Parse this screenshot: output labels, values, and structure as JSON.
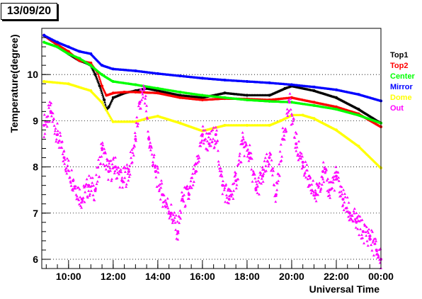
{
  "date_label": "13/09/20",
  "chart_data": {
    "type": "scatter",
    "title": "",
    "xlabel": "Universal Time",
    "ylabel": "Temperature(degree)",
    "xlim": [
      8.8,
      24.0
    ],
    "ylim": [
      5.8,
      11.0
    ],
    "grid": true,
    "legend_position": "right",
    "x_ticks": [
      {
        "value": 10,
        "label": "10:00"
      },
      {
        "value": 12,
        "label": "12:00"
      },
      {
        "value": 14,
        "label": "14:00"
      },
      {
        "value": 16,
        "label": "16:00"
      },
      {
        "value": 18,
        "label": "18:00"
      },
      {
        "value": 20,
        "label": "20:00"
      },
      {
        "value": 22,
        "label": "22:00"
      },
      {
        "value": 24,
        "label": "00:00"
      }
    ],
    "y_ticks": [
      6,
      7,
      8,
      9,
      10
    ],
    "series": [
      {
        "name": "Top1",
        "color": "#000000",
        "x": [
          8.9,
          9.5,
          10.0,
          10.5,
          10.8,
          11.0,
          11.2,
          11.4,
          11.6,
          11.7,
          11.8,
          12.0,
          12.5,
          13.0,
          13.5,
          14.0,
          15.0,
          16.0,
          17.0,
          18.0,
          19.0,
          19.7,
          20.0,
          21.0,
          22.0,
          23.0,
          24.0
        ],
        "y": [
          10.85,
          10.65,
          10.45,
          10.3,
          10.25,
          10.2,
          10.0,
          9.75,
          9.45,
          9.25,
          9.3,
          9.5,
          9.6,
          9.65,
          9.7,
          9.65,
          9.55,
          9.5,
          9.6,
          9.55,
          9.55,
          9.7,
          9.75,
          9.65,
          9.5,
          9.25,
          8.95
        ]
      },
      {
        "name": "Top2",
        "color": "#ff0000",
        "x": [
          8.9,
          9.5,
          10.0,
          10.5,
          11.0,
          11.3,
          11.5,
          11.7,
          12.0,
          12.5,
          13.0,
          14.0,
          15.0,
          16.0,
          17.0,
          18.0,
          19.0,
          20.0,
          21.0,
          22.0,
          23.0,
          24.0
        ],
        "y": [
          10.85,
          10.65,
          10.5,
          10.3,
          10.25,
          10.05,
          9.75,
          9.55,
          9.6,
          9.62,
          9.62,
          9.6,
          9.5,
          9.45,
          9.48,
          9.47,
          9.45,
          9.5,
          9.4,
          9.3,
          9.15,
          8.87
        ]
      },
      {
        "name": "Center",
        "color": "#00ff00",
        "x": [
          8.9,
          9.5,
          10.0,
          10.5,
          11.0,
          11.5,
          12.0,
          13.0,
          14.0,
          15.0,
          16.0,
          17.0,
          18.0,
          19.0,
          20.0,
          21.0,
          22.0,
          23.0,
          24.0
        ],
        "y": [
          10.7,
          10.6,
          10.45,
          10.35,
          10.2,
          10.0,
          9.85,
          9.78,
          9.7,
          9.62,
          9.55,
          9.5,
          9.45,
          9.42,
          9.4,
          9.33,
          9.25,
          9.12,
          8.95
        ]
      },
      {
        "name": "Mirror",
        "color": "#0000ff",
        "x": [
          8.9,
          9.5,
          10.0,
          10.5,
          11.0,
          11.5,
          12.0,
          13.0,
          14.0,
          15.0,
          16.0,
          17.0,
          18.0,
          19.0,
          20.0,
          21.0,
          22.0,
          23.0,
          24.0
        ],
        "y": [
          10.85,
          10.7,
          10.6,
          10.5,
          10.45,
          10.2,
          10.12,
          10.08,
          10.02,
          9.97,
          9.92,
          9.88,
          9.85,
          9.82,
          9.78,
          9.73,
          9.67,
          9.57,
          9.43
        ]
      },
      {
        "name": "Dome",
        "color": "#ffff00",
        "x": [
          8.9,
          10.0,
          11.0,
          11.5,
          12.0,
          13.0,
          13.5,
          14.0,
          15.0,
          16.0,
          17.0,
          18.0,
          19.0,
          19.5,
          20.0,
          20.5,
          21.0,
          22.0,
          23.0,
          24.0
        ],
        "y": [
          9.85,
          9.8,
          9.65,
          9.4,
          8.98,
          8.98,
          9.05,
          9.1,
          8.95,
          8.78,
          8.9,
          8.9,
          8.9,
          9.0,
          9.12,
          9.12,
          9.05,
          8.8,
          8.45,
          7.98
        ]
      },
      {
        "name": "Out",
        "color": "#ff00ff",
        "x": [
          8.9,
          9.2,
          9.5,
          9.8,
          10.2,
          10.6,
          10.9,
          11.2,
          11.5,
          11.8,
          12.1,
          12.4,
          12.7,
          13.0,
          13.2,
          13.4,
          13.6,
          13.9,
          14.2,
          14.6,
          14.9,
          15.1,
          15.4,
          15.7,
          16.0,
          16.3,
          16.6,
          16.9,
          17.2,
          17.5,
          17.8,
          18.1,
          18.4,
          18.7,
          19.0,
          19.3,
          19.6,
          19.9,
          20.2,
          20.5,
          20.8,
          21.1,
          21.4,
          21.7,
          22.0,
          22.3,
          22.6,
          22.9,
          23.2,
          23.5,
          23.8,
          24.0
        ],
        "y": [
          8.9,
          9.2,
          8.7,
          8.2,
          7.7,
          7.3,
          7.6,
          7.5,
          8.4,
          7.9,
          8.0,
          7.7,
          7.9,
          8.6,
          9.4,
          9.7,
          8.6,
          7.9,
          7.4,
          7.0,
          6.6,
          7.3,
          7.4,
          7.9,
          8.7,
          8.5,
          8.7,
          7.6,
          7.3,
          7.7,
          8.5,
          8.3,
          7.5,
          7.8,
          8.2,
          7.4,
          8.6,
          9.4,
          8.5,
          8.1,
          7.6,
          7.4,
          7.9,
          7.5,
          7.8,
          7.3,
          7.0,
          6.8,
          6.6,
          6.5,
          6.2,
          6.0
        ]
      }
    ]
  }
}
